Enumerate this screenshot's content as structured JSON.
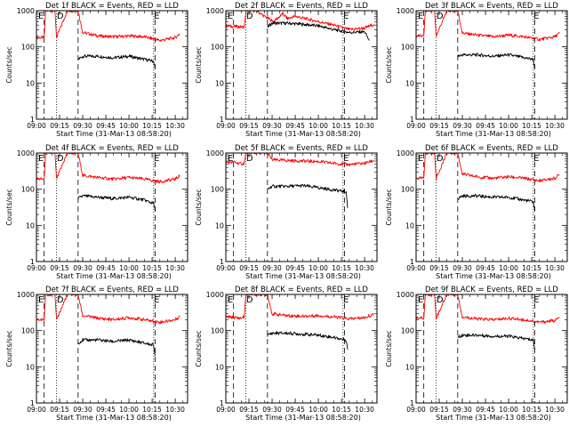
{
  "chart_data": [
    {
      "type": "line",
      "title": "Det 1f BLACK = Events, RED = LLD",
      "xlabel": "Start Time (31-Mar-13 08:58:20)",
      "ylabel": "Counts/sec",
      "ylim": [
        1,
        1000
      ],
      "yscale": "log",
      "xlim": [
        "09:00",
        "10:38"
      ],
      "xticks": [
        "09:00",
        "09:15",
        "09:30",
        "09:45",
        "10:00",
        "10:15",
        "10:30"
      ],
      "yticks": [
        "1",
        "10",
        "100",
        "1000"
      ],
      "markers": [
        "E",
        "D",
        "E"
      ],
      "series": [
        {
          "color": "#ff0000",
          "x": [
            "09:00",
            "09:05",
            "09:06",
            "09:12",
            "09:13",
            "09:20",
            "09:27",
            "09:30",
            "09:40",
            "09:50",
            "10:00",
            "10:10",
            "10:20",
            "10:30",
            "10:33"
          ],
          "y": [
            180,
            180,
            1000,
            1000,
            180,
            1000,
            1000,
            250,
            200,
            190,
            200,
            190,
            150,
            180,
            230
          ]
        },
        {
          "color": "#000000",
          "x": [
            "09:27",
            "09:30",
            "09:40",
            "09:50",
            "10:00",
            "10:10",
            "10:16",
            "10:17"
          ],
          "y": [
            45,
            55,
            55,
            50,
            55,
            45,
            40,
            25
          ]
        }
      ]
    },
    {
      "type": "line",
      "title": "Det 2f BLACK = Events, RED = LLD",
      "xlabel": "Start Time (31-Mar-13 08:58:20)",
      "ylabel": "Counts/sec",
      "ylim": [
        1,
        1000
      ],
      "yscale": "log",
      "xlim": [
        "09:00",
        "10:38"
      ],
      "xticks": [
        "09:00",
        "09:15",
        "09:30",
        "09:45",
        "10:00",
        "10:15",
        "10:30"
      ],
      "yticks": [
        "1",
        "10",
        "100",
        "1000"
      ],
      "markers": [
        "E",
        "D",
        "E"
      ],
      "series": [
        {
          "color": "#ff0000",
          "x": [
            "09:00",
            "09:12",
            "09:13",
            "09:20",
            "09:25",
            "09:31",
            "09:37",
            "09:40",
            "09:45",
            "10:00",
            "10:10",
            "10:20",
            "10:30",
            "10:36"
          ],
          "y": [
            380,
            350,
            1000,
            1000,
            700,
            500,
            820,
            600,
            700,
            500,
            400,
            300,
            330,
            420
          ]
        },
        {
          "color": "#000000",
          "x": [
            "09:27",
            "09:30",
            "09:40",
            "09:50",
            "10:00",
            "10:10",
            "10:20",
            "10:30",
            "10:33"
          ],
          "y": [
            350,
            450,
            450,
            420,
            380,
            300,
            250,
            260,
            150
          ]
        }
      ]
    },
    {
      "type": "line",
      "title": "Det 3f BLACK = Events, RED = LLD",
      "xlabel": "Start Time (31-Mar-13 08:58:20)",
      "ylabel": "Counts/sec",
      "ylim": [
        1,
        1000
      ],
      "yscale": "log",
      "xlim": [
        "09:00",
        "10:38"
      ],
      "xticks": [
        "09:00",
        "09:15",
        "09:30",
        "09:45",
        "10:00",
        "10:15",
        "10:30"
      ],
      "yticks": [
        "1",
        "10",
        "100",
        "1000"
      ],
      "markers": [
        "E",
        "D",
        "E"
      ],
      "series": [
        {
          "color": "#ff0000",
          "x": [
            "09:00",
            "09:05",
            "09:06",
            "09:12",
            "09:13",
            "09:20",
            "09:27",
            "09:30",
            "09:40",
            "09:50",
            "10:00",
            "10:10",
            "10:20",
            "10:30",
            "10:33"
          ],
          "y": [
            200,
            200,
            1000,
            1000,
            200,
            1000,
            1000,
            240,
            210,
            190,
            210,
            190,
            160,
            190,
            240
          ]
        },
        {
          "color": "#000000",
          "x": [
            "09:27",
            "09:30",
            "09:40",
            "09:50",
            "10:00",
            "10:10",
            "10:16",
            "10:17"
          ],
          "y": [
            55,
            60,
            60,
            55,
            60,
            50,
            45,
            25
          ]
        }
      ]
    },
    {
      "type": "line",
      "title": "Det 4f BLACK = Events, RED = LLD",
      "xlabel": "Start Time (31-Mar-13 08:58:20)",
      "ylabel": "Counts/sec",
      "ylim": [
        1,
        1000
      ],
      "yscale": "log",
      "xlim": [
        "09:00",
        "10:38"
      ],
      "xticks": [
        "09:00",
        "09:15",
        "09:30",
        "09:45",
        "10:00",
        "10:15",
        "10:30"
      ],
      "yticks": [
        "1",
        "10",
        "100",
        "1000"
      ],
      "markers": [
        "E",
        "D",
        "E"
      ],
      "series": [
        {
          "color": "#ff0000",
          "x": [
            "09:00",
            "09:05",
            "09:06",
            "09:12",
            "09:13",
            "09:20",
            "09:27",
            "09:30",
            "09:40",
            "09:50",
            "10:00",
            "10:10",
            "10:20",
            "10:30",
            "10:33"
          ],
          "y": [
            190,
            190,
            1000,
            1000,
            190,
            1000,
            1000,
            240,
            210,
            190,
            210,
            190,
            160,
            190,
            240
          ]
        },
        {
          "color": "#000000",
          "x": [
            "09:27",
            "09:30",
            "09:40",
            "09:50",
            "10:00",
            "10:10",
            "10:16",
            "10:17"
          ],
          "y": [
            55,
            65,
            60,
            55,
            60,
            50,
            40,
            25
          ]
        }
      ]
    },
    {
      "type": "line",
      "title": "Det 5f BLACK = Events, RED = LLD",
      "xlabel": "Start Time (31-Mar-13 08:58:20)",
      "ylabel": "Counts/sec",
      "ylim": [
        1,
        1000
      ],
      "yscale": "log",
      "xlim": [
        "09:00",
        "10:38"
      ],
      "xticks": [
        "09:00",
        "09:15",
        "09:30",
        "09:45",
        "10:00",
        "10:15",
        "10:30"
      ],
      "yticks": [
        "1",
        "10",
        "100",
        "1000"
      ],
      "markers": [
        "E",
        "D",
        "E"
      ],
      "series": [
        {
          "color": "#ff0000",
          "x": [
            "09:00",
            "09:05",
            "09:10",
            "09:12",
            "09:13",
            "09:20",
            "09:27",
            "09:30",
            "09:40",
            "09:50",
            "10:00",
            "10:10",
            "10:20",
            "10:30",
            "10:36"
          ],
          "y": [
            550,
            560,
            500,
            520,
            1000,
            1000,
            1000,
            650,
            620,
            600,
            580,
            520,
            480,
            520,
            620
          ]
        },
        {
          "color": "#000000",
          "x": [
            "09:27",
            "09:30",
            "09:40",
            "09:50",
            "10:00",
            "10:10",
            "10:18",
            "10:19"
          ],
          "y": [
            100,
            120,
            120,
            125,
            110,
            95,
            85,
            30
          ]
        }
      ]
    },
    {
      "type": "line",
      "title": "Det 6f BLACK = Events, RED = LLD",
      "xlabel": "Start Time (31-Mar-13 08:58:20)",
      "ylabel": "Counts/sec",
      "ylim": [
        1,
        1000
      ],
      "yscale": "log",
      "xlim": [
        "09:00",
        "10:38"
      ],
      "xticks": [
        "09:00",
        "09:15",
        "09:30",
        "09:45",
        "10:00",
        "10:15",
        "10:30"
      ],
      "yticks": [
        "1",
        "10",
        "100",
        "1000"
      ],
      "markers": [
        "E",
        "D",
        "E"
      ],
      "series": [
        {
          "color": "#ff0000",
          "x": [
            "09:00",
            "09:05",
            "09:06",
            "09:12",
            "09:13",
            "09:20",
            "09:27",
            "09:30",
            "09:40",
            "09:50",
            "10:00",
            "10:10",
            "10:20",
            "10:30",
            "10:33"
          ],
          "y": [
            200,
            200,
            1000,
            1000,
            200,
            1000,
            1000,
            260,
            220,
            200,
            220,
            200,
            170,
            200,
            250
          ]
        },
        {
          "color": "#000000",
          "x": [
            "09:27",
            "09:30",
            "09:40",
            "09:50",
            "10:00",
            "10:10",
            "10:16",
            "10:17"
          ],
          "y": [
            55,
            65,
            65,
            60,
            60,
            50,
            45,
            25
          ]
        }
      ]
    },
    {
      "type": "line",
      "title": "Det 7f BLACK = Events, RED = LLD",
      "xlabel": "Start Time (31-Mar-13 08:58:20)",
      "ylabel": "Counts/sec",
      "ylim": [
        1,
        1000
      ],
      "yscale": "log",
      "xlim": [
        "09:00",
        "10:38"
      ],
      "xticks": [
        "09:00",
        "09:15",
        "09:30",
        "09:45",
        "10:00",
        "10:15",
        "10:30"
      ],
      "yticks": [
        "1",
        "10",
        "100",
        "1000"
      ],
      "markers": [
        "E",
        "D",
        "E"
      ],
      "series": [
        {
          "color": "#ff0000",
          "x": [
            "09:00",
            "09:05",
            "09:06",
            "09:12",
            "09:13",
            "09:20",
            "09:27",
            "09:30",
            "09:40",
            "09:50",
            "10:00",
            "10:10",
            "10:20",
            "10:30",
            "10:33"
          ],
          "y": [
            200,
            200,
            1000,
            1000,
            200,
            1000,
            1000,
            260,
            220,
            200,
            230,
            200,
            170,
            200,
            250
          ]
        },
        {
          "color": "#000000",
          "x": [
            "09:27",
            "09:30",
            "09:40",
            "09:50",
            "10:00",
            "10:10",
            "10:16",
            "10:17"
          ],
          "y": [
            45,
            55,
            55,
            50,
            55,
            45,
            40,
            20
          ]
        }
      ]
    },
    {
      "type": "line",
      "title": "Det 8f BLACK = Events, RED = LLD",
      "xlabel": "Start Time (31-Mar-13 08:58:20)",
      "ylabel": "Counts/sec",
      "ylim": [
        1,
        1000
      ],
      "yscale": "log",
      "xlim": [
        "09:00",
        "10:38"
      ],
      "xticks": [
        "09:00",
        "09:15",
        "09:30",
        "09:45",
        "10:00",
        "10:15",
        "10:30"
      ],
      "yticks": [
        "1",
        "10",
        "100",
        "1000"
      ],
      "markers": [
        "E",
        "D",
        "E"
      ],
      "series": [
        {
          "color": "#ff0000",
          "x": [
            "09:00",
            "09:05",
            "09:10",
            "09:12",
            "09:13",
            "09:20",
            "09:27",
            "09:30",
            "09:40",
            "09:50",
            "10:00",
            "10:10",
            "10:20",
            "10:30",
            "10:36"
          ],
          "y": [
            240,
            230,
            220,
            250,
            1000,
            1000,
            1000,
            290,
            260,
            250,
            260,
            240,
            210,
            230,
            280
          ]
        },
        {
          "color": "#000000",
          "x": [
            "09:27",
            "09:30",
            "09:40",
            "09:50",
            "10:00",
            "10:10",
            "10:18",
            "10:19"
          ],
          "y": [
            75,
            85,
            85,
            80,
            75,
            65,
            55,
            30
          ]
        }
      ]
    },
    {
      "type": "line",
      "title": "Det 9f BLACK = Events, RED = LLD",
      "xlabel": "Start Time (31-Mar-13 08:58:20)",
      "ylabel": "Counts/sec",
      "ylim": [
        1,
        1000
      ],
      "yscale": "log",
      "xlim": [
        "09:00",
        "10:38"
      ],
      "xticks": [
        "09:00",
        "09:15",
        "09:30",
        "09:45",
        "10:00",
        "10:15",
        "10:30"
      ],
      "yticks": [
        "1",
        "10",
        "100",
        "1000"
      ],
      "markers": [
        "E",
        "D",
        "E"
      ],
      "series": [
        {
          "color": "#ff0000",
          "x": [
            "09:00",
            "09:05",
            "09:06",
            "09:12",
            "09:13",
            "09:20",
            "09:27",
            "09:30",
            "09:40",
            "09:50",
            "10:00",
            "10:10",
            "10:20",
            "10:30",
            "10:33"
          ],
          "y": [
            220,
            220,
            1000,
            1000,
            220,
            1000,
            1000,
            240,
            210,
            200,
            220,
            200,
            170,
            190,
            230
          ]
        },
        {
          "color": "#000000",
          "x": [
            "09:27",
            "09:30",
            "09:40",
            "09:50",
            "10:00",
            "10:10",
            "10:16",
            "10:17"
          ],
          "y": [
            65,
            75,
            75,
            70,
            70,
            60,
            55,
            30
          ]
        }
      ]
    }
  ]
}
